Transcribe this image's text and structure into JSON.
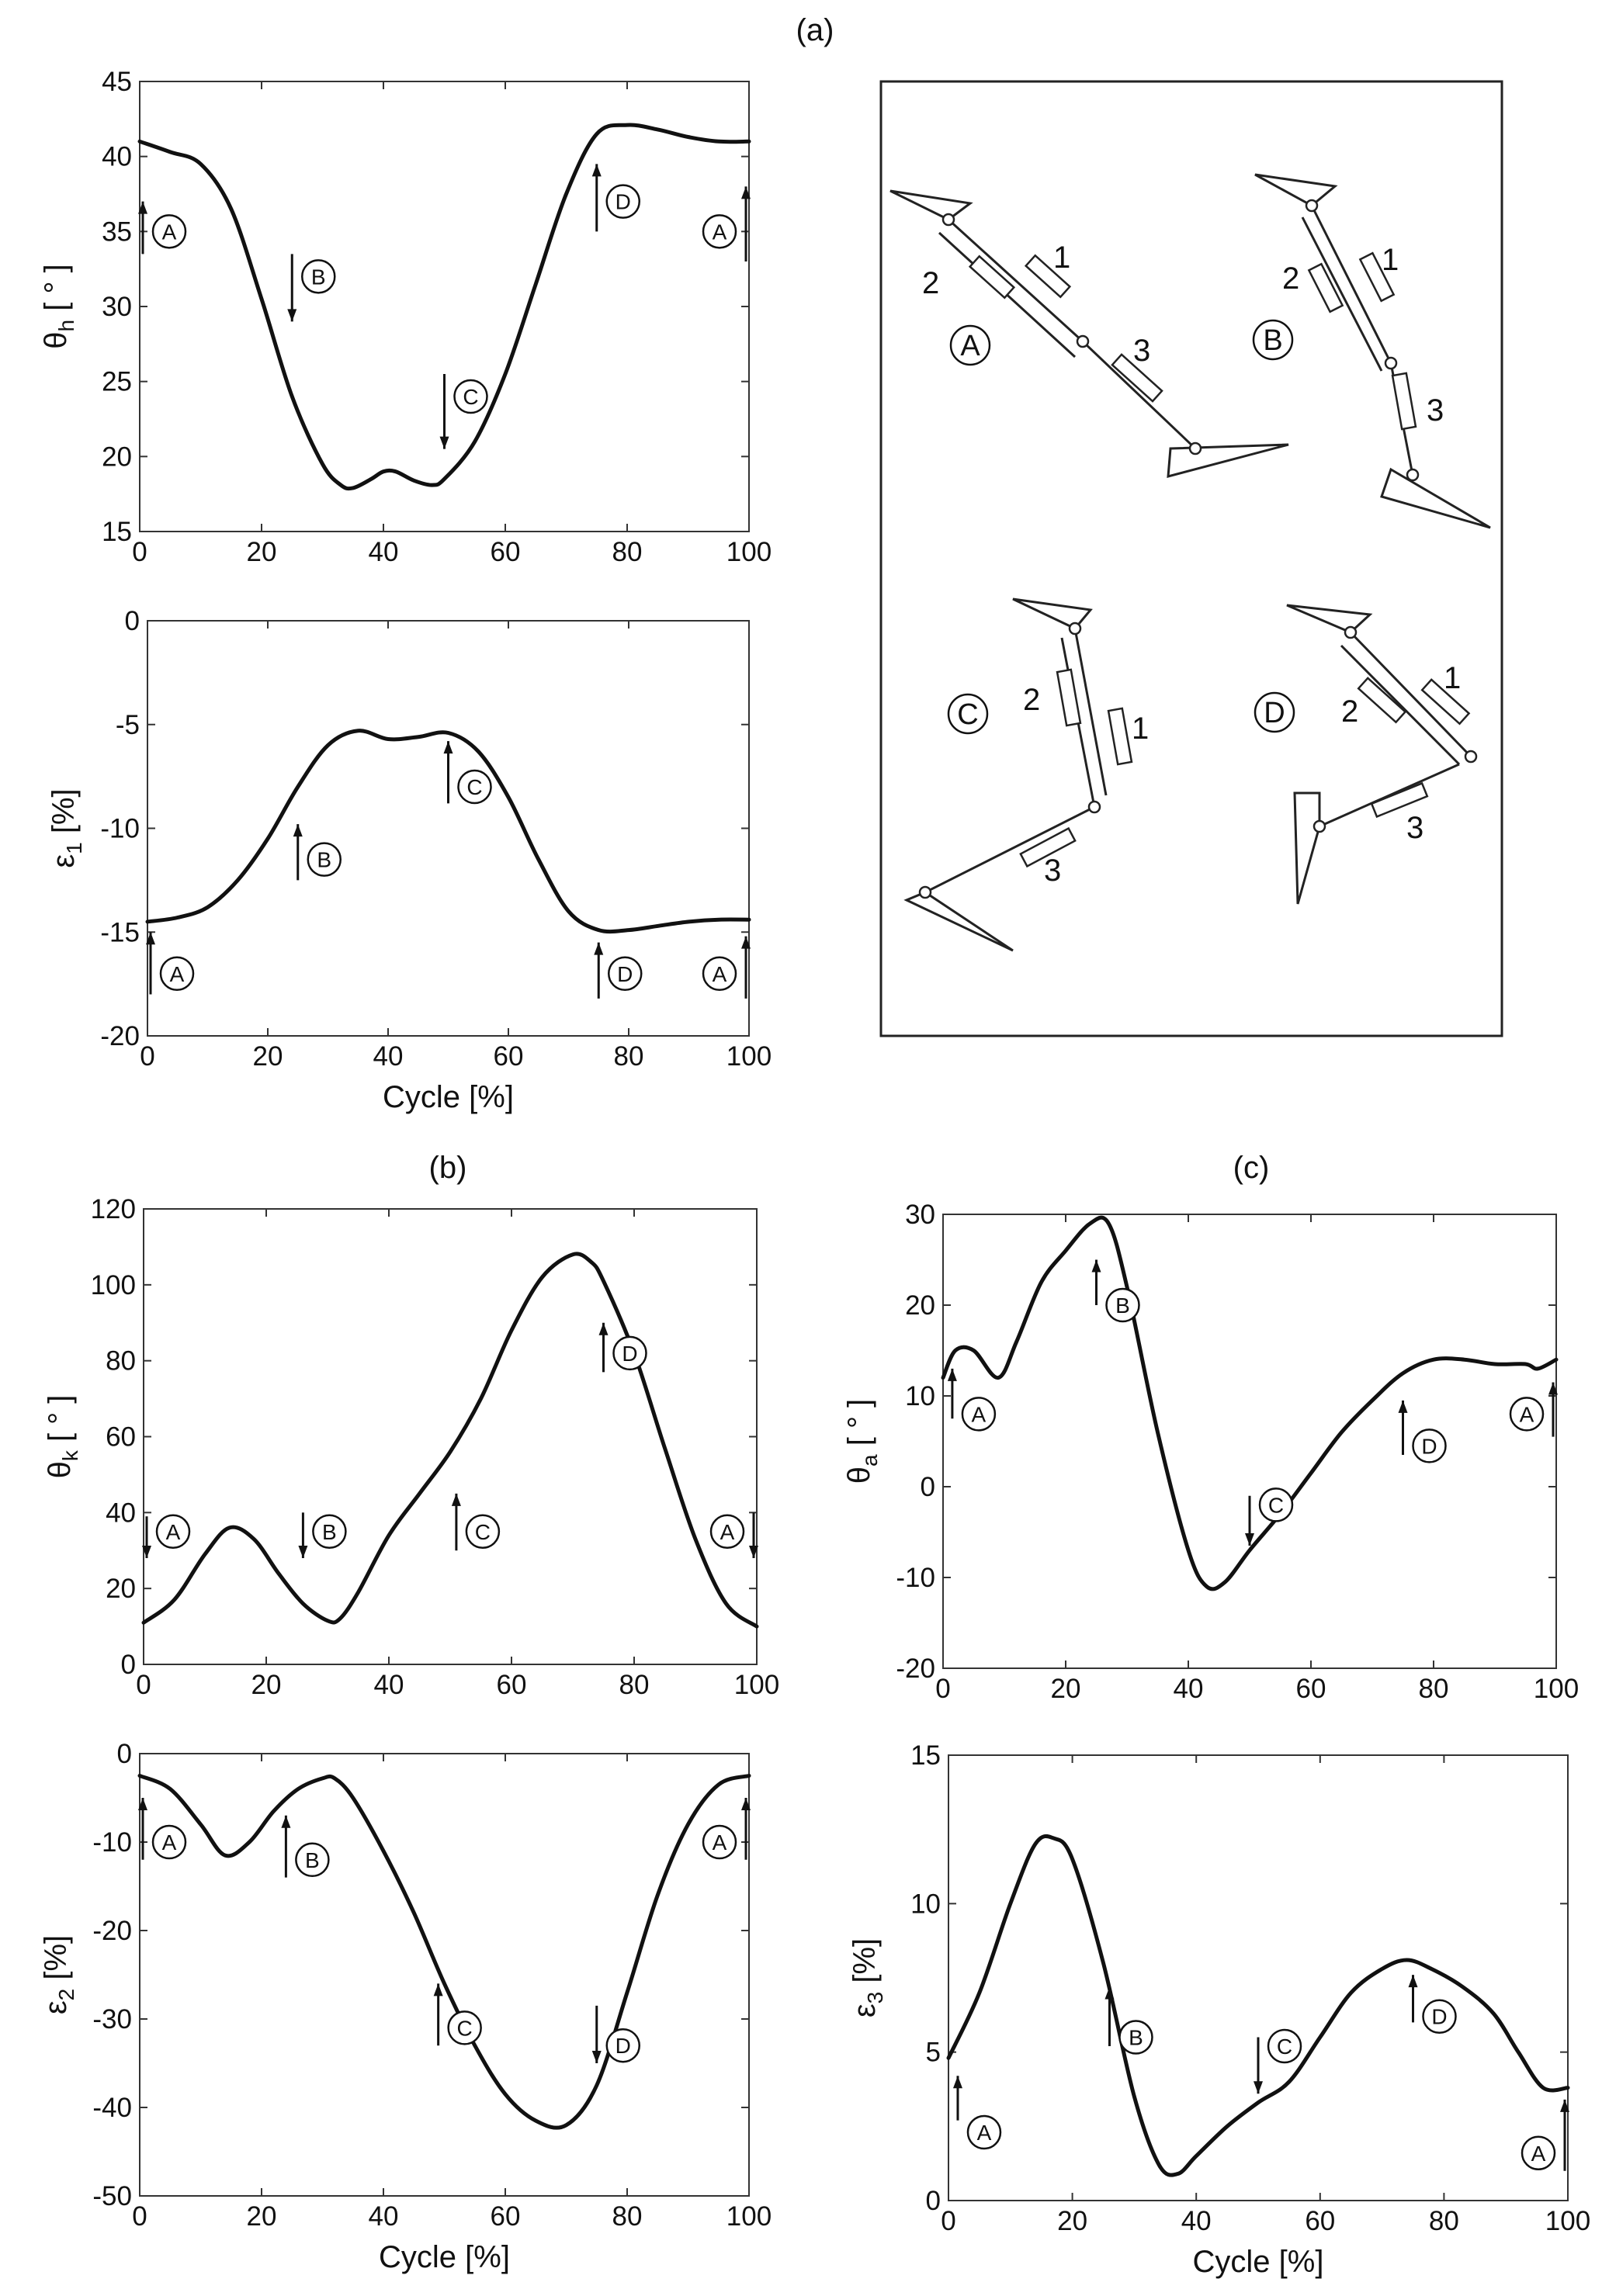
{
  "panel_labels": {
    "a": "(a)",
    "b": "(b)",
    "c": "(c)"
  },
  "chart_data": [
    {
      "id": "theta_h",
      "type": "line",
      "ylabel_main": "θ",
      "ylabel_sub": "h",
      "ylabel_unit": " [ ° ]",
      "xlabel": "",
      "xlim": [
        0,
        100
      ],
      "ylim": [
        15,
        45
      ],
      "xticks": [
        0,
        20,
        40,
        60,
        80,
        100
      ],
      "yticks": [
        15,
        20,
        25,
        30,
        35,
        40,
        45
      ],
      "grid": false,
      "x": [
        0,
        5,
        10,
        15,
        20,
        25,
        30,
        33,
        35,
        38,
        40,
        42,
        45,
        48,
        50,
        55,
        60,
        65,
        70,
        75,
        80,
        85,
        90,
        95,
        100
      ],
      "y": [
        41,
        40.3,
        39.5,
        36.5,
        30.5,
        24,
        19.5,
        18.1,
        17.9,
        18.5,
        19,
        19,
        18.4,
        18.1,
        18.5,
        21,
        25.5,
        31.5,
        37.5,
        41.5,
        42.1,
        41.8,
        41.3,
        41,
        41
      ],
      "markers": [
        {
          "label": "A",
          "x": 0,
          "dir": "up",
          "ay0": 37,
          "ay1": 33.5,
          "ly": 35
        },
        {
          "label": "B",
          "x": 25,
          "dir": "down",
          "ay0": 33.5,
          "ay1": 29,
          "ly": 32
        },
        {
          "label": "C",
          "x": 50,
          "dir": "down",
          "ay0": 25.5,
          "ay1": 20.5,
          "ly": 24
        },
        {
          "label": "D",
          "x": 75,
          "dir": "up",
          "ay0": 39.5,
          "ay1": 35,
          "ly": 37
        },
        {
          "label": "A",
          "x": 100,
          "dir": "up",
          "ay0": 38,
          "ay1": 33,
          "ly": 35
        }
      ]
    },
    {
      "id": "eps_1",
      "type": "line",
      "ylabel_main": "ε",
      "ylabel_sub": "1",
      "ylabel_unit": " [%]",
      "xlabel": "Cycle [%]",
      "xlim": [
        0,
        100
      ],
      "ylim": [
        -20,
        0
      ],
      "xticks": [
        0,
        20,
        40,
        60,
        80,
        100
      ],
      "yticks": [
        0,
        -5,
        -10,
        -15,
        -20
      ],
      "grid": false,
      "x": [
        0,
        5,
        10,
        15,
        20,
        25,
        30,
        35,
        40,
        45,
        50,
        55,
        60,
        65,
        70,
        75,
        80,
        85,
        90,
        95,
        100
      ],
      "y": [
        -14.5,
        -14.3,
        -13.8,
        -12.5,
        -10.5,
        -8,
        -6,
        -5.3,
        -5.7,
        -5.6,
        -5.4,
        -6.3,
        -8.5,
        -11.5,
        -14,
        -14.9,
        -14.9,
        -14.7,
        -14.5,
        -14.4,
        -14.4
      ],
      "markers": [
        {
          "label": "A",
          "x": 0,
          "dir": "up",
          "ay0": -15,
          "ay1": -18,
          "ly": -17
        },
        {
          "label": "B",
          "x": 25,
          "dir": "up",
          "ay0": -9.8,
          "ay1": -12.5,
          "ly": -11.5
        },
        {
          "label": "C",
          "x": 50,
          "dir": "up",
          "ay0": -5.8,
          "ay1": -8.8,
          "ly": -8
        },
        {
          "label": "D",
          "x": 75,
          "dir": "up",
          "ay0": -15.5,
          "ay1": -18.2,
          "ly": -17
        },
        {
          "label": "A",
          "x": 100,
          "dir": "up",
          "ay0": -15.2,
          "ay1": -18.2,
          "ly": -17
        }
      ]
    },
    {
      "id": "theta_k",
      "type": "line",
      "ylabel_main": "θ",
      "ylabel_sub": "k",
      "ylabel_unit": " [ ° ]",
      "xlabel": "",
      "xlim": [
        0,
        100
      ],
      "ylim": [
        0,
        120
      ],
      "xticks": [
        0,
        20,
        40,
        60,
        80,
        100
      ],
      "yticks": [
        0,
        20,
        40,
        60,
        80,
        100,
        120
      ],
      "grid": false,
      "x": [
        0,
        5,
        10,
        14,
        18,
        22,
        26,
        30,
        32,
        35,
        40,
        45,
        50,
        55,
        60,
        65,
        70,
        73,
        75,
        80,
        85,
        90,
        95,
        100
      ],
      "y": [
        11,
        17,
        29,
        36,
        33,
        24,
        16,
        11.5,
        12,
        19,
        34,
        45,
        56,
        70,
        88,
        102,
        108,
        106,
        101,
        82,
        57,
        33,
        16,
        10
      ],
      "markers": [
        {
          "label": "A",
          "x": 0,
          "dir": "down",
          "ay0": 39,
          "ay1": 28,
          "ly": 35
        },
        {
          "label": "B",
          "x": 26,
          "dir": "down",
          "ay0": 40,
          "ay1": 28,
          "ly": 35
        },
        {
          "label": "C",
          "x": 51,
          "dir": "up",
          "ay0": 45,
          "ay1": 30,
          "ly": 35
        },
        {
          "label": "D",
          "x": 75,
          "dir": "up",
          "ay0": 90,
          "ay1": 77,
          "ly": 82
        },
        {
          "label": "A",
          "x": 100,
          "dir": "down",
          "ay0": 40,
          "ay1": 28,
          "ly": 35
        }
      ]
    },
    {
      "id": "eps_2",
      "type": "line",
      "ylabel_main": "ε",
      "ylabel_sub": "2",
      "ylabel_unit": " [%]",
      "xlabel": "Cycle [%]",
      "xlim": [
        0,
        100
      ],
      "ylim": [
        -50,
        0
      ],
      "xticks": [
        0,
        20,
        40,
        60,
        80,
        100
      ],
      "yticks": [
        0,
        -10,
        -20,
        -30,
        -40,
        -50
      ],
      "grid": false,
      "x": [
        0,
        5,
        10,
        14,
        18,
        22,
        26,
        30,
        32,
        35,
        40,
        45,
        50,
        55,
        60,
        65,
        70,
        75,
        80,
        85,
        90,
        95,
        100
      ],
      "y": [
        -2.5,
        -4,
        -8,
        -11.5,
        -10,
        -6.5,
        -4,
        -2.8,
        -2.8,
        -5,
        -11,
        -18,
        -26,
        -33,
        -38.5,
        -41.5,
        -42,
        -37.5,
        -27,
        -16,
        -8,
        -3.5,
        -2.5
      ],
      "markers": [
        {
          "label": "A",
          "x": 0,
          "dir": "up",
          "ay0": -5,
          "ay1": -12,
          "ly": -10
        },
        {
          "label": "B",
          "x": 24,
          "dir": "up",
          "ay0": -7,
          "ay1": -14,
          "ly": -12
        },
        {
          "label": "C",
          "x": 49,
          "dir": "up",
          "ay0": -26,
          "ay1": -33,
          "ly": -31
        },
        {
          "label": "D",
          "x": 75,
          "dir": "down",
          "ay0": -28.5,
          "ay1": -35,
          "ly": -33
        },
        {
          "label": "A",
          "x": 100,
          "dir": "up",
          "ay0": -5,
          "ay1": -12,
          "ly": -10
        }
      ]
    },
    {
      "id": "theta_a",
      "type": "line",
      "ylabel_main": "θ",
      "ylabel_sub": "a",
      "ylabel_unit": " [ ° ]",
      "xlabel": "",
      "xlim": [
        0,
        100
      ],
      "ylim": [
        -20,
        30
      ],
      "xticks": [
        0,
        20,
        40,
        60,
        80,
        100
      ],
      "yticks": [
        -20,
        -10,
        0,
        10,
        20,
        30
      ],
      "grid": false,
      "x": [
        0,
        2,
        5,
        9,
        12,
        16,
        20,
        24,
        27,
        30,
        35,
        40,
        43,
        46,
        50,
        55,
        60,
        65,
        70,
        75,
        80,
        85,
        90,
        95,
        97,
        100
      ],
      "y": [
        12,
        15,
        15,
        12,
        16,
        22.5,
        26,
        29,
        29,
        22,
        6,
        -7,
        -11,
        -10.5,
        -7,
        -3,
        1.5,
        6,
        9.5,
        12.5,
        14,
        14,
        13.5,
        13.5,
        13,
        14
      ],
      "markers": [
        {
          "label": "A",
          "x": 1,
          "dir": "up",
          "ay0": 13,
          "ay1": 7.5,
          "ly": 8
        },
        {
          "label": "B",
          "x": 25,
          "dir": "up",
          "ay0": 25,
          "ay1": 20,
          "ly": 20
        },
        {
          "label": "C",
          "x": 50,
          "dir": "down",
          "ay0": -1,
          "ay1": -6.5,
          "ly": -2
        },
        {
          "label": "D",
          "x": 75,
          "dir": "up",
          "ay0": 9.5,
          "ay1": 3.5,
          "ly": 4.5
        },
        {
          "label": "A",
          "x": 100,
          "dir": "up",
          "ay0": 11.5,
          "ay1": 5.5,
          "ly": 8
        }
      ]
    },
    {
      "id": "eps_3",
      "type": "line",
      "ylabel_main": "ε",
      "ylabel_sub": "3",
      "ylabel_unit": " [%]",
      "xlabel": "Cycle [%]",
      "xlim": [
        0,
        100
      ],
      "ylim": [
        0,
        15
      ],
      "xticks": [
        0,
        20,
        40,
        60,
        80,
        100
      ],
      "yticks": [
        0,
        5,
        10,
        15
      ],
      "grid": false,
      "x": [
        0,
        5,
        10,
        14,
        17,
        20,
        25,
        30,
        34,
        37,
        40,
        45,
        50,
        55,
        60,
        65,
        70,
        74,
        78,
        83,
        88,
        92,
        96,
        100
      ],
      "y": [
        4.8,
        7,
        10,
        12,
        12.2,
        11.5,
        8,
        3.5,
        1.2,
        0.9,
        1.5,
        2.5,
        3.3,
        4,
        5.5,
        7,
        7.8,
        8.1,
        7.8,
        7.2,
        6.3,
        5,
        3.8,
        3.8
      ],
      "markers": [
        {
          "label": "A",
          "x": 1,
          "dir": "up",
          "ay0": 4.2,
          "ay1": 2.7,
          "ly": 2.3
        },
        {
          "label": "B",
          "x": 26,
          "dir": "up",
          "ay0": 7.2,
          "ay1": 5.2,
          "ly": 5.5
        },
        {
          "label": "C",
          "x": 50,
          "dir": "down",
          "ay0": 5.5,
          "ay1": 3.6,
          "ly": 5.2
        },
        {
          "label": "D",
          "x": 75,
          "dir": "up",
          "ay0": 7.6,
          "ay1": 6,
          "ly": 6.2
        },
        {
          "label": "A",
          "x": 100,
          "dir": "up",
          "ay0": 3.4,
          "ay1": 1,
          "ly": 1.6
        }
      ]
    }
  ],
  "schematic": {
    "poses": [
      {
        "label": "A",
        "numbers": [
          "1",
          "2",
          "3"
        ]
      },
      {
        "label": "B",
        "numbers": [
          "1",
          "2",
          "3"
        ]
      },
      {
        "label": "C",
        "numbers": [
          "1",
          "2",
          "3"
        ]
      },
      {
        "label": "D",
        "numbers": [
          "1",
          "2",
          "3"
        ]
      }
    ]
  }
}
